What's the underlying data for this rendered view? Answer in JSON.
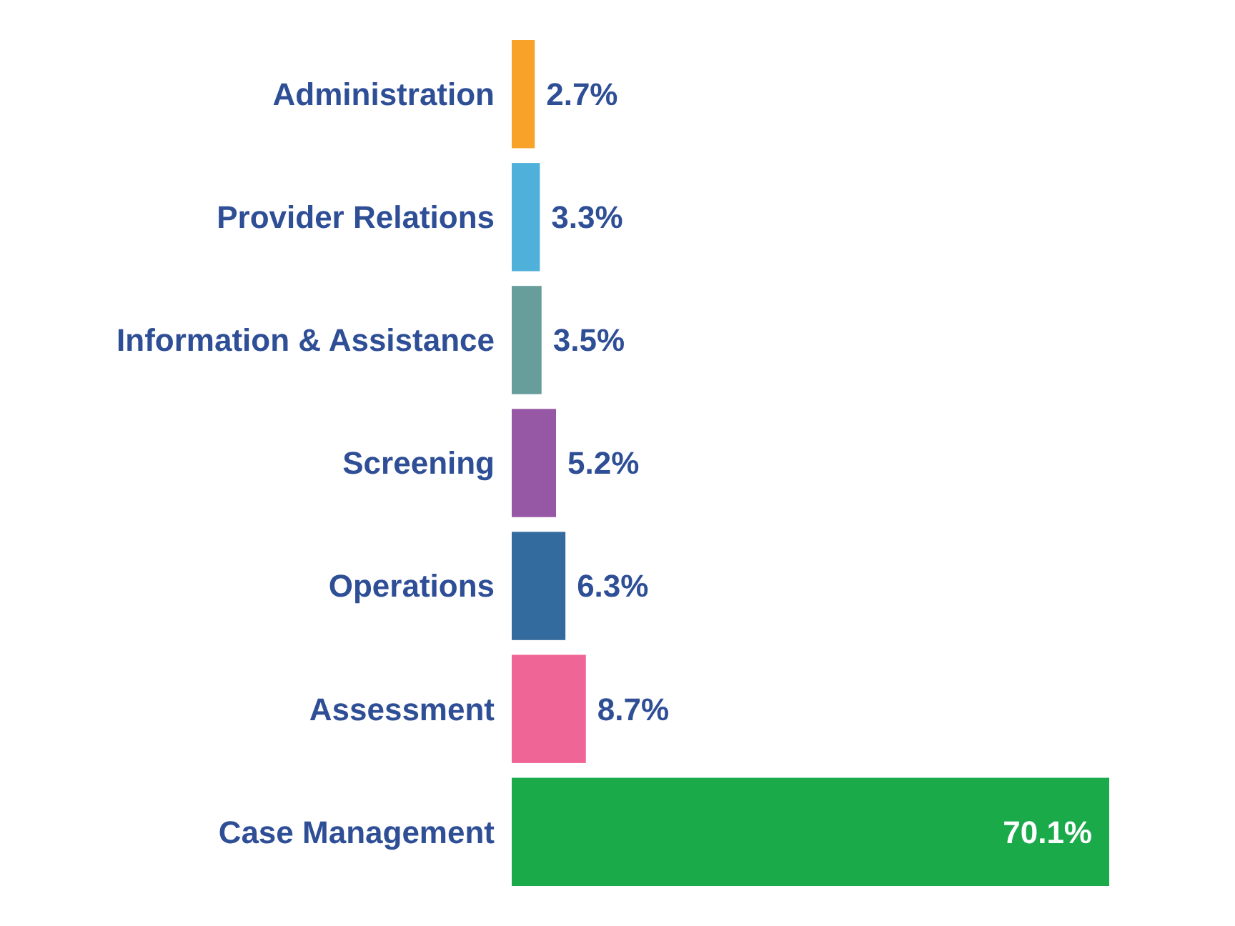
{
  "chart_data": {
    "type": "bar",
    "orientation": "horizontal",
    "value_labels": [
      "2.7%",
      "3.3%",
      "3.5%",
      "5.2%",
      "6.3%",
      "8.7%",
      "70.1%"
    ],
    "categories": [
      "Administration",
      "Provider Relations",
      "Information & Assistance",
      "Screening",
      "Operations",
      "Assessment",
      "Case Management"
    ],
    "values": [
      2.7,
      3.3,
      3.5,
      5.2,
      6.3,
      8.7,
      70.1
    ],
    "colors": [
      "#f8a22a",
      "#4fb0da",
      "#679d9b",
      "#9657a5",
      "#336b9e",
      "#ef6595",
      "#1aaa4a"
    ]
  }
}
